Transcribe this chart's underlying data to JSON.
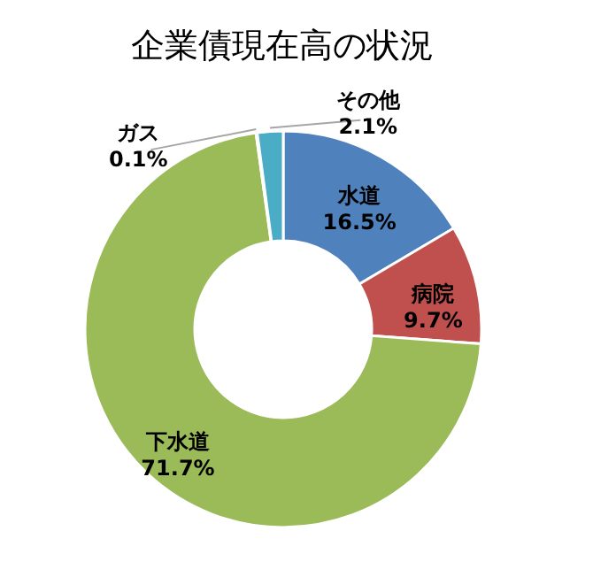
{
  "chart_data": {
    "type": "donut",
    "title": "企業債現在高の状況",
    "categories": [
      "水道",
      "病院",
      "下水道",
      "ガス",
      "その他"
    ],
    "values": [
      16.5,
      9.7,
      71.7,
      0.1,
      2.1
    ],
    "value_labels": [
      "16.5%",
      "9.7%",
      "71.7%",
      "0.1%",
      "2.1%"
    ],
    "colors": [
      "#4f81bd",
      "#c0504d",
      "#9bbb59",
      "#8064a2",
      "#4bacc6"
    ],
    "legend": false
  }
}
